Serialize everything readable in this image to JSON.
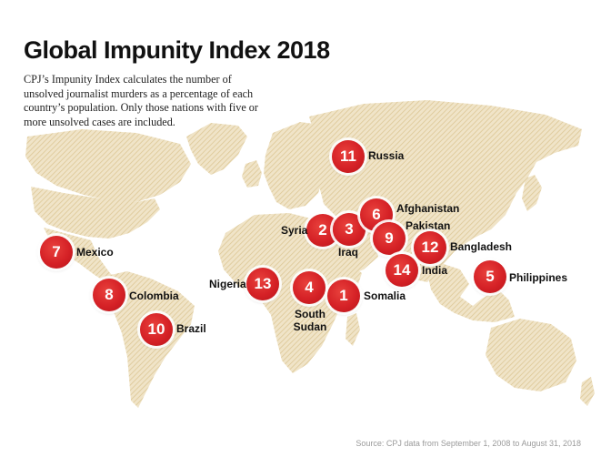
{
  "title": "Global Impunity Index 2018",
  "subtitle": "CPJ’s Impunity Index calculates the number of unsolved journalist murders as a percentage of each country’s population. Only those nations with five or more unsolved cases are included.",
  "source": "Source: CPJ data from September 1, 2008 to August 31, 2018",
  "colors": {
    "marker": "#d52126",
    "land": "#e6d5ae",
    "text": "#111111"
  },
  "markers": [
    {
      "rank": "1",
      "country": "Somalia"
    },
    {
      "rank": "2",
      "country": "Syria"
    },
    {
      "rank": "3",
      "country": "Iraq"
    },
    {
      "rank": "4",
      "country": "South Sudan"
    },
    {
      "rank": "5",
      "country": "Philippines"
    },
    {
      "rank": "6",
      "country": "Afghanistan"
    },
    {
      "rank": "7",
      "country": "Mexico"
    },
    {
      "rank": "8",
      "country": "Colombia"
    },
    {
      "rank": "9",
      "country": "Pakistan"
    },
    {
      "rank": "10",
      "country": "Brazil"
    },
    {
      "rank": "11",
      "country": "Russia"
    },
    {
      "rank": "12",
      "country": "Bangladesh"
    },
    {
      "rank": "13",
      "country": "Nigeria"
    },
    {
      "rank": "14",
      "country": "India"
    }
  ]
}
